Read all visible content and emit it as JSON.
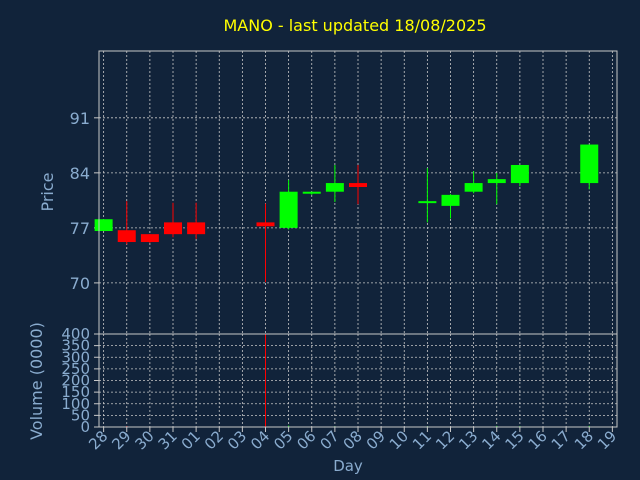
{
  "chart_data": {
    "type": "candlestick",
    "title": "MANO - last updated 18/08/2025",
    "price_panel": {
      "ylabel": "Price",
      "ylim": [
        63.5,
        99.5
      ],
      "yticks": [
        70,
        77,
        84,
        91
      ]
    },
    "volume_panel": {
      "ylabel": "Volume (0000)",
      "ylim": [
        0,
        400
      ],
      "yticks": [
        0,
        50,
        100,
        150,
        200,
        250,
        300,
        350,
        400
      ]
    },
    "xlabel": "Day",
    "x_range": [
      -0.2,
      22.2
    ],
    "x_ticks": [
      {
        "pos": 0,
        "label": "28"
      },
      {
        "pos": 1,
        "label": "29"
      },
      {
        "pos": 2,
        "label": "30"
      },
      {
        "pos": 3,
        "label": "31"
      },
      {
        "pos": 4,
        "label": "01"
      },
      {
        "pos": 5,
        "label": "02"
      },
      {
        "pos": 6,
        "label": "03"
      },
      {
        "pos": 7,
        "label": "04"
      },
      {
        "pos": 8,
        "label": "05"
      },
      {
        "pos": 9,
        "label": "06"
      },
      {
        "pos": 10,
        "label": "07"
      },
      {
        "pos": 11,
        "label": "08"
      },
      {
        "pos": 12,
        "label": "09"
      },
      {
        "pos": 13,
        "label": "10"
      },
      {
        "pos": 14,
        "label": "11"
      },
      {
        "pos": 15,
        "label": "12"
      },
      {
        "pos": 16,
        "label": "13"
      },
      {
        "pos": 17,
        "label": "14"
      },
      {
        "pos": 18,
        "label": "15"
      },
      {
        "pos": 19,
        "label": "16"
      },
      {
        "pos": 20,
        "label": "17"
      },
      {
        "pos": 21,
        "label": "18"
      },
      {
        "pos": 22,
        "label": "19"
      }
    ],
    "candles": [
      {
        "x": 0,
        "open": 76.6,
        "close": 78.1,
        "high": 78.1,
        "low": 76.6,
        "volume": 2
      },
      {
        "x": 1,
        "open": 76.7,
        "close": 75.2,
        "high": 80.4,
        "low": 74.9,
        "volume": 4
      },
      {
        "x": 2,
        "open": 76.2,
        "close": 75.2,
        "high": 76.2,
        "low": 75.1,
        "volume": 1
      },
      {
        "x": 3,
        "open": 77.7,
        "close": 76.2,
        "high": 80.2,
        "low": 75.8,
        "volume": 2
      },
      {
        "x": 4,
        "open": 77.7,
        "close": 76.2,
        "high": 80.2,
        "low": 75.6,
        "volume": 2
      },
      {
        "x": 7,
        "open": 77.7,
        "close": 77.2,
        "high": 80.1,
        "low": 70.1,
        "volume": 400
      },
      {
        "x": 8,
        "open": 77.0,
        "close": 81.6,
        "high": 83.1,
        "low": 76.8,
        "volume": 6
      },
      {
        "x": 9,
        "open": 81.4,
        "close": 81.6,
        "high": 81.6,
        "low": 81.2,
        "volume": 1
      },
      {
        "x": 10,
        "open": 81.6,
        "close": 82.7,
        "high": 85.0,
        "low": 80.3,
        "volume": 3
      },
      {
        "x": 11,
        "open": 82.7,
        "close": 82.2,
        "high": 85.0,
        "low": 80.0,
        "volume": 2
      },
      {
        "x": 14,
        "open": 80.2,
        "close": 80.4,
        "high": 84.6,
        "low": 77.7,
        "volume": 3
      },
      {
        "x": 15,
        "open": 79.8,
        "close": 81.2,
        "high": 81.3,
        "low": 78.2,
        "volume": 2
      },
      {
        "x": 16,
        "open": 81.6,
        "close": 82.7,
        "high": 84.2,
        "low": 81.4,
        "volume": 2
      },
      {
        "x": 17,
        "open": 82.7,
        "close": 83.2,
        "high": 84.0,
        "low": 80.0,
        "volume": 5
      },
      {
        "x": 18,
        "open": 82.7,
        "close": 85.0,
        "high": 85.0,
        "low": 82.3,
        "volume": 4
      },
      {
        "x": 21,
        "open": 82.7,
        "close": 87.6,
        "high": 87.6,
        "low": 81.9,
        "volume": 5
      }
    ]
  },
  "colors": {
    "background": "#11233a",
    "axis_text": "#8aaccf",
    "title_text": "#ffff00",
    "grid": "#c8c8c8",
    "frame": "#c8c8c8",
    "up": "#00ff00",
    "down": "#ff0000"
  }
}
